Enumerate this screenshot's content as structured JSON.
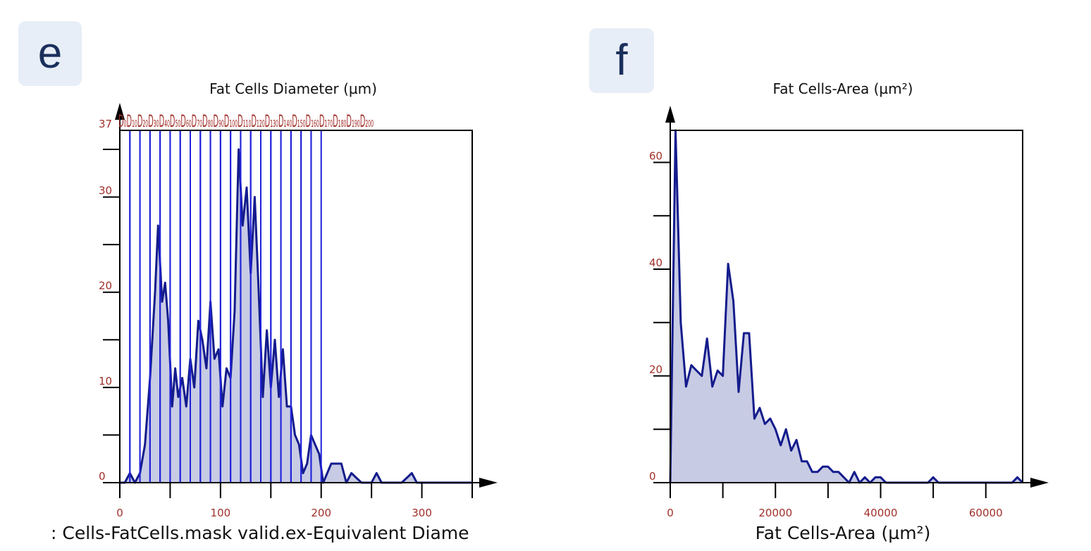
{
  "panels": {
    "e": "e",
    "f": "f"
  },
  "chart_data": [
    {
      "type": "area",
      "title": "Fat Cells Diameter (µm)",
      "xlabel": ": Cells-FatCells.mask valid.ex-Equivalent Diame",
      "ylabel": "",
      "xlim": [
        0,
        350
      ],
      "ylim": [
        0,
        37
      ],
      "x_ticks": [
        "0",
        "100",
        "200",
        "300"
      ],
      "y_ticks": [
        "0",
        "10",
        "20",
        "30",
        "37"
      ],
      "gate_labels": "D₀D₁₀D₂₀D₃₀D₄₀D₅₀D₆₀D₇₀D₈₀D₉₀D₁₀₀D₁₁₀D₁₂₀D₁₃₀D₁₄₀D₁₅₀D₁₆₀D₁₇₀D₁₈₀D₁₉₀D₂₀₀",
      "gate_color": "#1f22d9",
      "gates": [
        0,
        10,
        20,
        30,
        40,
        50,
        60,
        70,
        80,
        90,
        100,
        110,
        120,
        130,
        140,
        150,
        160,
        170,
        180,
        190,
        200
      ],
      "series": [
        {
          "x": [
            0,
            5,
            10,
            15,
            20,
            25,
            30,
            35,
            38,
            42,
            45,
            48,
            52,
            55,
            58,
            62,
            66,
            70,
            74,
            78,
            82,
            86,
            90,
            94,
            98,
            102,
            106,
            110,
            114,
            118,
            122,
            126,
            130,
            134,
            138,
            142,
            146,
            150,
            154,
            158,
            162,
            166,
            170,
            174,
            178,
            182,
            186,
            190,
            194,
            198,
            202,
            206,
            210,
            215,
            220,
            225,
            230,
            240,
            250,
            255,
            260,
            270,
            280,
            290,
            295,
            300,
            350
          ],
          "values": [
            0,
            0,
            1,
            0,
            1,
            4,
            11,
            20,
            27,
            19,
            21,
            17,
            8,
            12,
            9,
            11,
            8,
            13,
            10,
            17,
            15,
            12,
            19,
            13,
            14,
            8,
            12,
            11,
            18,
            35,
            27,
            31,
            22,
            30,
            20,
            9,
            16,
            10,
            15,
            9,
            14,
            8,
            8,
            5,
            4,
            1,
            2,
            5,
            4,
            3,
            0,
            1,
            2,
            2,
            2,
            0,
            1,
            0,
            0,
            1,
            0,
            0,
            0,
            1,
            0,
            0,
            0
          ]
        }
      ],
      "line_color": "#141c8c",
      "fill_color": "#c8cbe4"
    },
    {
      "type": "area",
      "title": "Fat Cells-Area (µm²)",
      "xlabel": "Fat Cells-Area (µm²)",
      "ylabel": "",
      "xlim": [
        0,
        67000
      ],
      "ylim": [
        0,
        66
      ],
      "x_ticks": [
        "0",
        "20000",
        "40000",
        "60000"
      ],
      "y_ticks": [
        "0",
        "20",
        "40",
        "60"
      ],
      "series": [
        {
          "x": [
            0,
            1000,
            2000,
            3000,
            4000,
            5000,
            6000,
            7000,
            8000,
            9000,
            10000,
            11000,
            12000,
            13000,
            14000,
            15000,
            16000,
            17000,
            18000,
            19000,
            20000,
            21000,
            22000,
            23000,
            24000,
            25000,
            26000,
            27000,
            28000,
            29000,
            30000,
            31000,
            32000,
            33000,
            34000,
            35000,
            36000,
            37000,
            38000,
            39000,
            40000,
            41000,
            42000,
            43000,
            44000,
            45000,
            46000,
            47000,
            48000,
            49000,
            50000,
            51000,
            52000,
            55000,
            60000,
            65000,
            66000,
            67000
          ],
          "values": [
            0,
            66,
            30,
            18,
            22,
            21,
            20,
            27,
            18,
            21,
            20,
            41,
            34,
            17,
            28,
            28,
            12,
            14,
            11,
            12,
            10,
            7,
            10,
            6,
            8,
            4,
            4,
            2,
            2,
            3,
            3,
            2,
            2,
            1,
            0,
            2,
            0,
            1,
            0,
            1,
            1,
            0,
            0,
            0,
            0,
            0,
            0,
            0,
            0,
            0,
            1,
            0,
            0,
            0,
            0,
            0,
            1,
            0
          ]
        }
      ],
      "line_color": "#141c8c",
      "fill_color": "#c8cbe4"
    }
  ]
}
